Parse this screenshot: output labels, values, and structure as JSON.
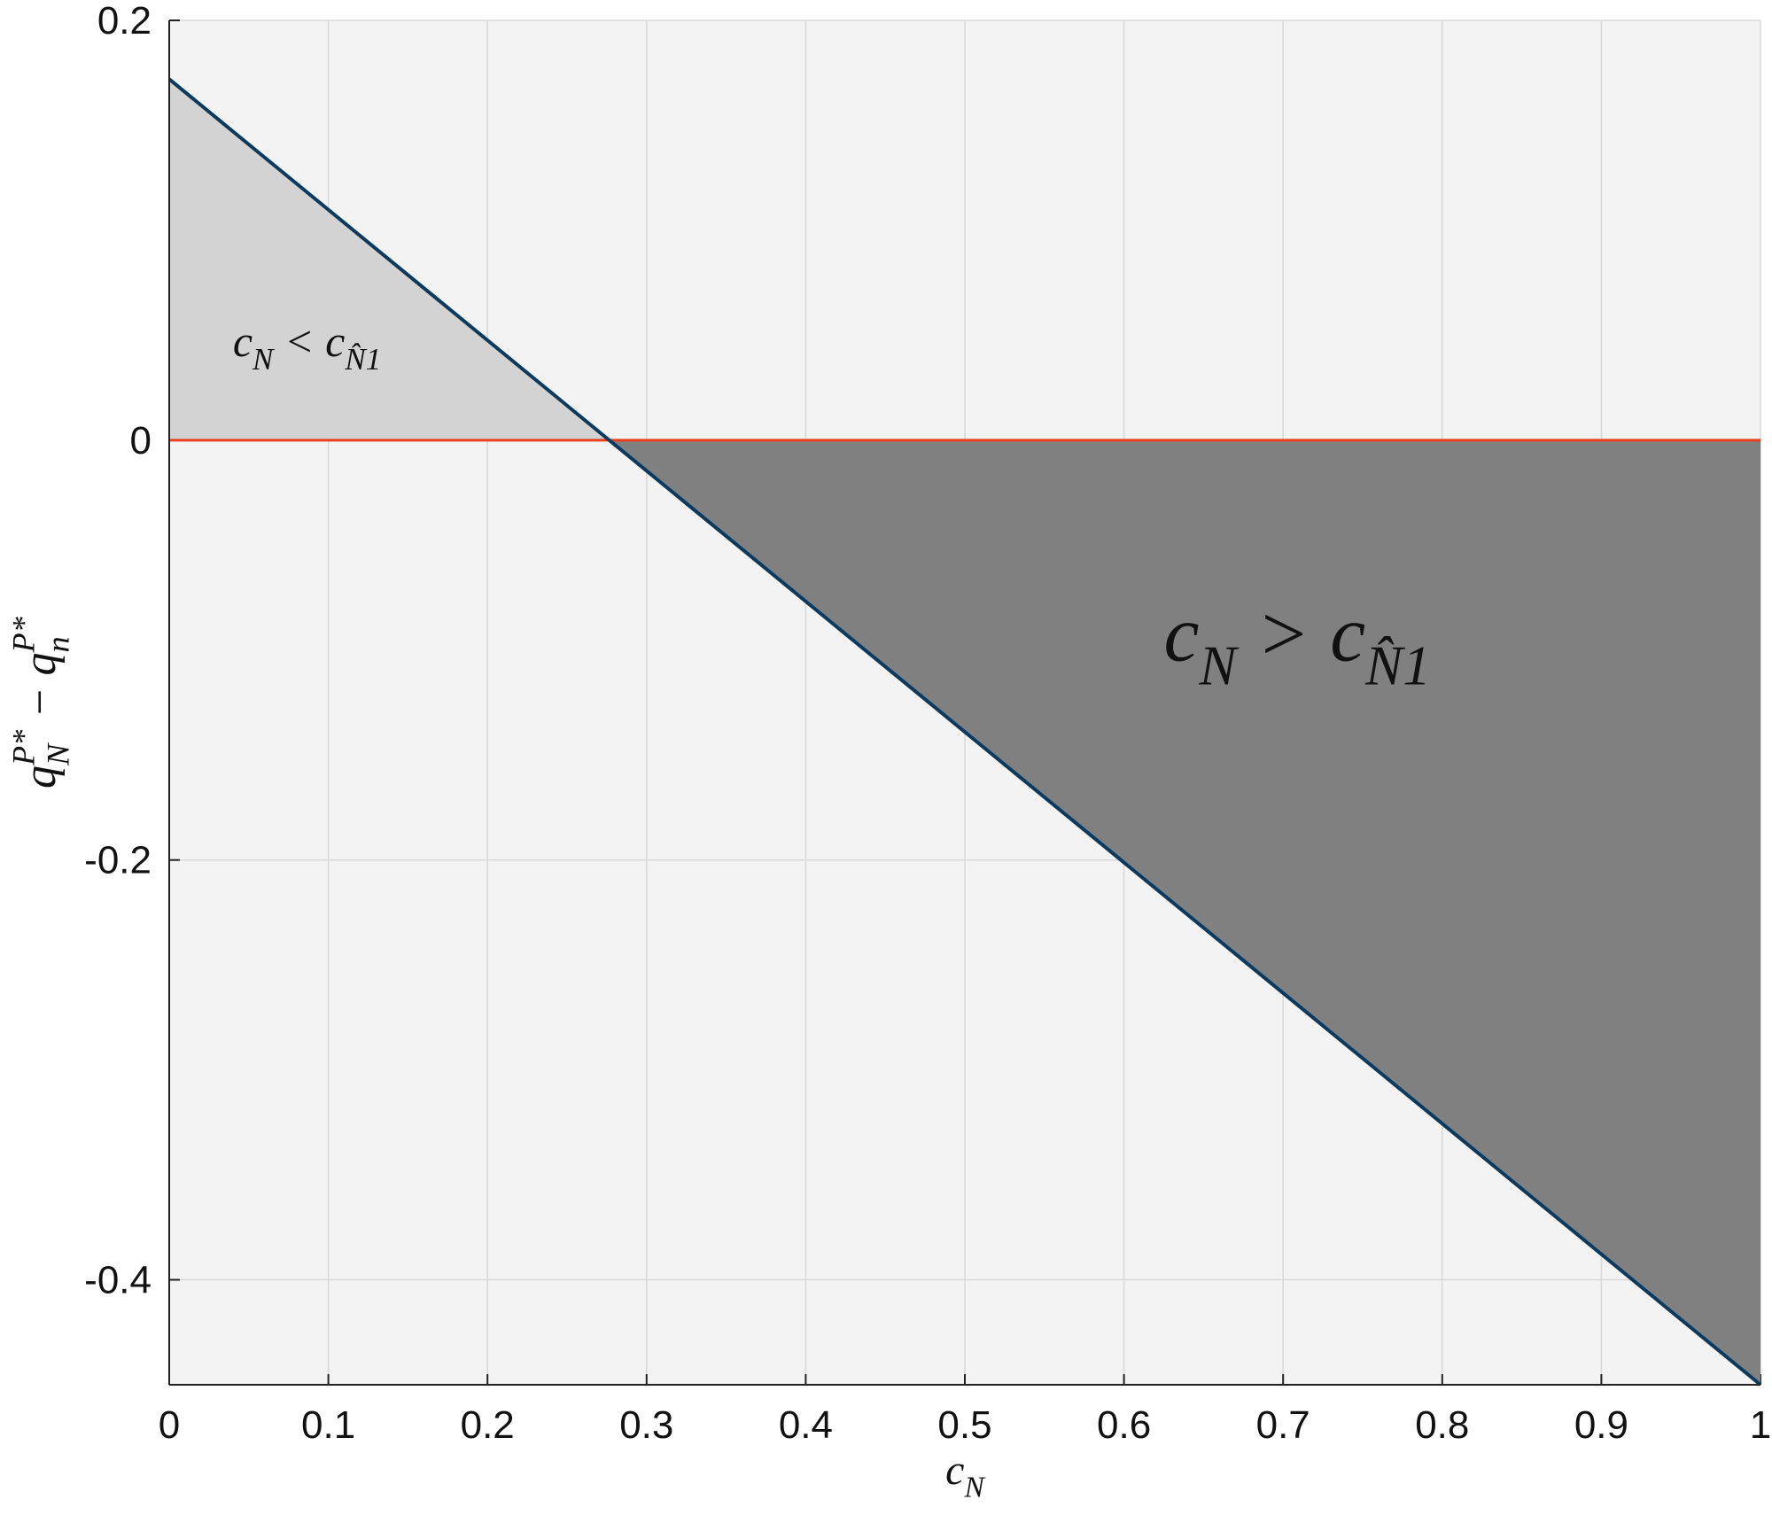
{
  "chart_data": {
    "type": "line",
    "x": [
      0,
      1
    ],
    "series": [
      {
        "color": "#0b3a5e",
        "values": [
          0.172,
          -0.45
        ]
      },
      {
        "color": "#e8401c",
        "values": [
          0,
          0
        ]
      }
    ],
    "fill_above": "#d3d3d3",
    "fill_below": "#808080",
    "xlim": [
      0,
      1
    ],
    "ylim": [
      -0.45,
      0.2
    ],
    "xticks": [
      0,
      0.1,
      0.2,
      0.3,
      0.4,
      0.5,
      0.6,
      0.7,
      0.8,
      0.9,
      1
    ],
    "yticks": [
      -0.4,
      -0.2,
      0,
      0.2
    ],
    "grid": true,
    "x_label": [
      {
        "base": "c",
        "sub": "N"
      }
    ],
    "y_label": [
      {
        "base": "q",
        "sub": "N",
        "sup": "P*"
      },
      {
        "base": " − "
      },
      {
        "base": "q",
        "sub": "n",
        "sup": "P*"
      }
    ],
    "annotations": [
      [
        {
          "base": "c",
          "sub": "N"
        },
        {
          "base": " < "
        },
        {
          "base": "c",
          "sub": "N̂1"
        }
      ],
      [
        {
          "base": "c",
          "sub": "N"
        },
        {
          "base": " > "
        },
        {
          "base": "c",
          "sub": "N̂1"
        }
      ]
    ]
  }
}
